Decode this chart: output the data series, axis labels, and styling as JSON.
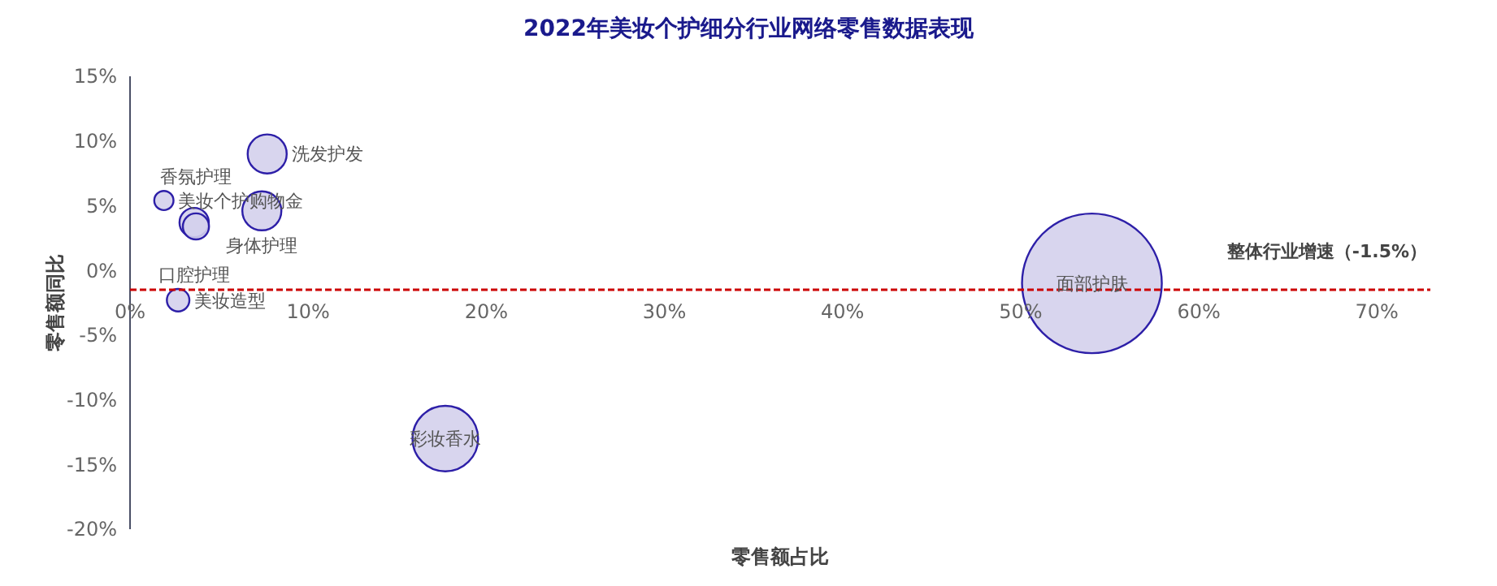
{
  "chart_data": {
    "type": "bubble",
    "title": "2022年美妆个护细分行业网络零售数据表现",
    "xlabel": "零售额占比",
    "ylabel": "零售额同比",
    "annotations": [
      {
        "text": "洗发护发",
        "x": 7.7,
        "y": 9.0
      },
      {
        "text": "美妆个护购物金",
        "x": 1.9,
        "y": 5.4
      },
      {
        "text": "身体护理",
        "x": 7.4,
        "y": 4.6
      },
      {
        "text": "口腔护理",
        "x": 3.6,
        "y": 3.7
      },
      {
        "text": "香氛护理",
        "x": 3.7,
        "y": 3.4
      },
      {
        "text": "美妆造型",
        "x": 2.7,
        "y": -2.3
      },
      {
        "text": "面部护肤",
        "x": 54,
        "y": -1.0
      },
      {
        "text": "彩妆香水",
        "x": 17.7,
        "y": -13.0
      }
    ],
    "series": [
      {
        "color": "#d4d0ec",
        "x": [
          7.7,
          1.9,
          7.4,
          3.6,
          3.7,
          2.7,
          54,
          17.7
        ],
        "values": [
          9.0,
          5.4,
          4.6,
          3.7,
          3.4,
          -2.3,
          -1.0,
          -13.0
        ],
        "sizes": [
          0.078,
          0.019,
          0.078,
          0.044,
          0.035,
          0.026,
          1,
          0.22
        ]
      }
    ],
    "xlim": [
      0,
      73
    ],
    "xticks": [
      {
        "value": 0,
        "label": "0%"
      },
      {
        "value": 10,
        "label": "10%"
      },
      {
        "value": 20,
        "label": "20%"
      },
      {
        "value": 30,
        "label": "30%"
      },
      {
        "value": 40,
        "label": "40%"
      },
      {
        "value": 50,
        "label": "50%"
      },
      {
        "value": 60,
        "label": "60%"
      },
      {
        "value": 70,
        "label": "70%"
      }
    ],
    "ylim": [
      -20,
      15
    ],
    "yticks": [
      {
        "value": -20,
        "label": "-20%"
      },
      {
        "value": -15,
        "label": "-15%"
      },
      {
        "value": -10,
        "label": "-10%"
      },
      {
        "value": -5,
        "label": "-5%"
      },
      {
        "value": 0,
        "label": "0%"
      },
      {
        "value": 5,
        "label": "5%"
      },
      {
        "value": 10,
        "label": "10%"
      },
      {
        "value": 15,
        "label": "15%"
      }
    ],
    "ref_lines": [
      {
        "axis": "y",
        "value": -1.5,
        "label": "整体行业增速（-1.5%）",
        "color": "#cc0000",
        "line_style": "dashed"
      }
    ],
    "grid": false
  }
}
